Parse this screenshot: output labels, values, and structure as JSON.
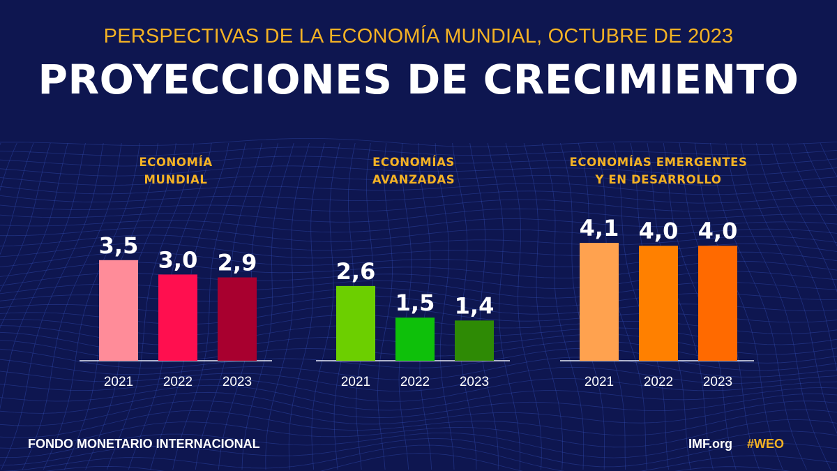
{
  "header": {
    "subtitle": "PERSPECTIVAS DE LA ECONOMÍA MUNDIAL, OCTUBRE DE 2023",
    "title": "PROYECCIONES DE CRECIMIENTO"
  },
  "footer": {
    "organization": "FONDO MONETARIO INTERNACIONAL",
    "website": "IMF.org",
    "hashtag": "#WEO"
  },
  "colors": {
    "background": "#0e1650",
    "accent": "#f4b224",
    "text": "#ffffff"
  },
  "chart_data": [
    {
      "type": "bar",
      "title_lines": [
        "ECONOMÍA",
        "MUNDIAL"
      ],
      "categories": [
        "2021",
        "2022",
        "2023"
      ],
      "values": [
        3.5,
        3.0,
        2.9
      ],
      "labels": [
        "3,5",
        "3,0",
        "2,9"
      ],
      "colors": [
        "#ff8c99",
        "#ff0f4f",
        "#a8002f"
      ]
    },
    {
      "type": "bar",
      "title_lines": [
        "ECONOMÍAS",
        "AVANZADAS"
      ],
      "categories": [
        "2021",
        "2022",
        "2023"
      ],
      "values": [
        2.6,
        1.5,
        1.4
      ],
      "labels": [
        "2,6",
        "1,5",
        "1,4"
      ],
      "colors": [
        "#6ccf00",
        "#0ec00a",
        "#2e8a05"
      ]
    },
    {
      "type": "bar",
      "title_lines": [
        "ECONOMÍAS EMERGENTES",
        "Y EN DESARROLLO"
      ],
      "categories": [
        "2021",
        "2022",
        "2023"
      ],
      "values": [
        4.1,
        4.0,
        4.0
      ],
      "labels": [
        "4,1",
        "4,0",
        "4,0"
      ],
      "colors": [
        "#ffa24f",
        "#ff8000",
        "#ff6a00"
      ]
    }
  ]
}
